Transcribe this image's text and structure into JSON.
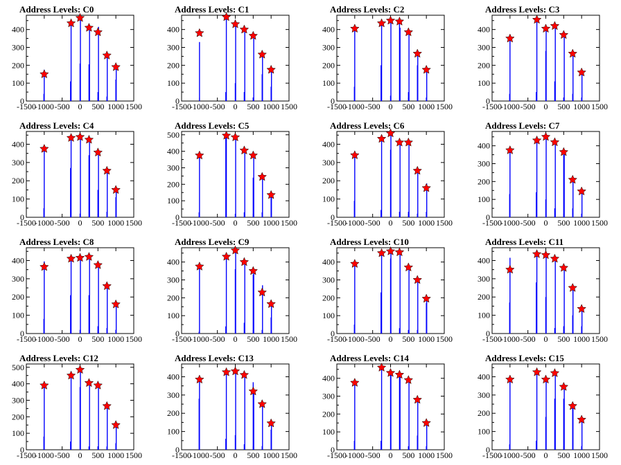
{
  "figure": {
    "x_ticks": [
      -1500,
      -1000,
      -500,
      0,
      500,
      1000,
      1500
    ],
    "x_tick_labels": [
      "-1500",
      "-1000",
      "-500",
      "0",
      "500",
      "1000",
      "1500"
    ],
    "colors": {
      "histogram": "#0000ff",
      "marker": "#ff0000",
      "marker_edge": "#000000",
      "frame": "#000000"
    }
  },
  "chart_data": [
    {
      "type": "bar",
      "title": "Address Levels: C0",
      "xlim": [
        -1500,
        1500
      ],
      "ylim": [
        0,
        480
      ],
      "yticks": [
        0,
        100,
        200,
        300,
        400
      ],
      "ytick_labels": [
        "0",
        "100",
        "200",
        "300",
        "400"
      ],
      "markers": {
        "x": [
          -1000,
          -250,
          0,
          250,
          500,
          750,
          1000
        ],
        "y": [
          150,
          435,
          465,
          410,
          385,
          255,
          190
        ]
      },
      "bars": {
        "x": [
          -1010,
          -1000,
          -265,
          -250,
          0,
          10,
          250,
          265,
          500,
          515,
          750,
          760,
          1000,
          1010
        ],
        "y": [
          40,
          175,
          110,
          440,
          210,
          470,
          205,
          420,
          50,
          415,
          25,
          260,
          120,
          195
        ]
      }
    },
    {
      "type": "bar",
      "title": "Address Levels: C1",
      "xlim": [
        -1500,
        1500
      ],
      "ylim": [
        0,
        480
      ],
      "yticks": [
        0,
        100,
        200,
        300,
        400
      ],
      "ytick_labels": [
        "0",
        "100",
        "200",
        "300",
        "400"
      ],
      "markers": {
        "x": [
          -1000,
          -250,
          0,
          250,
          500,
          750,
          1000
        ],
        "y": [
          380,
          470,
          430,
          400,
          365,
          260,
          175
        ]
      },
      "bars": {
        "x": [
          -1000,
          -265,
          -250,
          0,
          10,
          250,
          265,
          500,
          515,
          750,
          760,
          1000,
          1010
        ],
        "y": [
          330,
          50,
          475,
          100,
          440,
          50,
          410,
          20,
          370,
          150,
          265,
          80,
          180
        ]
      }
    },
    {
      "type": "bar",
      "title": "Address Levels: C2",
      "xlim": [
        -1500,
        1500
      ],
      "ylim": [
        0,
        480
      ],
      "yticks": [
        0,
        100,
        200,
        300,
        400
      ],
      "ytick_labels": [
        "0",
        "100",
        "200",
        "300",
        "400"
      ],
      "markers": {
        "x": [
          -1000,
          -250,
          0,
          250,
          500,
          750,
          1000
        ],
        "y": [
          405,
          435,
          450,
          445,
          385,
          265,
          175
        ]
      },
      "bars": {
        "x": [
          -1010,
          -1000,
          -265,
          -250,
          0,
          10,
          250,
          265,
          500,
          515,
          750,
          760,
          1000,
          1010
        ],
        "y": [
          80,
          410,
          200,
          440,
          30,
          460,
          440,
          410,
          50,
          390,
          200,
          270,
          20,
          180
        ]
      }
    },
    {
      "type": "bar",
      "title": "Address Levels: C3",
      "xlim": [
        -1500,
        1500
      ],
      "ylim": [
        0,
        480
      ],
      "yticks": [
        0,
        100,
        200,
        300,
        400
      ],
      "ytick_labels": [
        "0",
        "100",
        "200",
        "300",
        "400"
      ],
      "markers": {
        "x": [
          -1000,
          -250,
          0,
          250,
          500,
          750,
          1000
        ],
        "y": [
          350,
          455,
          405,
          420,
          370,
          265,
          160
        ]
      },
      "bars": {
        "x": [
          -1010,
          -1000,
          -265,
          -250,
          0,
          10,
          250,
          265,
          500,
          515,
          750,
          760,
          1000,
          1010
        ],
        "y": [
          40,
          355,
          50,
          460,
          280,
          410,
          110,
          425,
          20,
          375,
          40,
          270,
          20,
          165
        ]
      }
    },
    {
      "type": "bar",
      "title": "Address Levels: C4",
      "xlim": [
        -1500,
        1500
      ],
      "ylim": [
        0,
        470
      ],
      "yticks": [
        0,
        100,
        200,
        300,
        400
      ],
      "ytick_labels": [
        "0",
        "100",
        "200",
        "300",
        "400"
      ],
      "markers": {
        "x": [
          -1000,
          -250,
          0,
          250,
          500,
          750,
          1000
        ],
        "y": [
          375,
          435,
          440,
          425,
          355,
          255,
          150
        ]
      },
      "bars": {
        "x": [
          -1010,
          -1000,
          -265,
          -250,
          0,
          10,
          250,
          265,
          500,
          515,
          750,
          760,
          1000,
          1010
        ],
        "y": [
          50,
          380,
          270,
          440,
          20,
          445,
          340,
          430,
          150,
          360,
          30,
          260,
          110,
          155
        ]
      }
    },
    {
      "type": "bar",
      "title": "Address Levels: C5",
      "xlim": [
        -1500,
        1500
      ],
      "ylim": [
        0,
        520
      ],
      "yticks": [
        0,
        100,
        200,
        300,
        400,
        500
      ],
      "ytick_labels": [
        "0",
        "100",
        "200",
        "300",
        "400",
        "500"
      ],
      "markers": {
        "x": [
          -1000,
          -250,
          0,
          250,
          500,
          750,
          1000
        ],
        "y": [
          375,
          495,
          485,
          405,
          375,
          245,
          135
        ]
      },
      "bars": {
        "x": [
          -1010,
          -1000,
          -265,
          -250,
          0,
          10,
          250,
          265,
          500,
          515,
          750,
          760,
          1000,
          1010
        ],
        "y": [
          30,
          380,
          480,
          500,
          20,
          490,
          30,
          410,
          240,
          380,
          30,
          250,
          130,
          150
        ]
      }
    },
    {
      "type": "bar",
      "title": "Address Levels: C6",
      "xlim": [
        -1500,
        1500
      ],
      "ylim": [
        0,
        470
      ],
      "yticks": [
        0,
        100,
        200,
        300,
        400
      ],
      "ytick_labels": [
        "0",
        "100",
        "200",
        "300",
        "400"
      ],
      "markers": {
        "x": [
          -1000,
          -250,
          0,
          250,
          500,
          750,
          1000
        ],
        "y": [
          340,
          430,
          460,
          410,
          410,
          255,
          160
        ]
      },
      "bars": {
        "x": [
          -1010,
          -1000,
          -265,
          -250,
          0,
          10,
          250,
          265,
          500,
          515,
          750,
          760,
          1000,
          1010
        ],
        "y": [
          90,
          340,
          40,
          430,
          370,
          465,
          30,
          415,
          30,
          415,
          20,
          260,
          30,
          185
        ]
      }
    },
    {
      "type": "bar",
      "title": "Address Levels: C7",
      "xlim": [
        -1500,
        1500
      ],
      "ylim": [
        0,
        480
      ],
      "yticks": [
        0,
        100,
        200,
        300,
        400
      ],
      "ytick_labels": [
        "0",
        "100",
        "200",
        "300",
        "400"
      ],
      "markers": {
        "x": [
          -1000,
          -250,
          0,
          250,
          500,
          750,
          1000
        ],
        "y": [
          375,
          430,
          450,
          420,
          365,
          210,
          145
        ]
      },
      "bars": {
        "x": [
          -1010,
          -1000,
          -265,
          -250,
          0,
          10,
          250,
          265,
          500,
          515,
          750,
          760,
          1000,
          1010
        ],
        "y": [
          130,
          380,
          140,
          435,
          100,
          455,
          50,
          425,
          350,
          370,
          50,
          215,
          20,
          150
        ]
      }
    },
    {
      "type": "bar",
      "title": "Address Levels: C8",
      "xlim": [
        -1500,
        1500
      ],
      "ylim": [
        0,
        470
      ],
      "yticks": [
        0,
        100,
        200,
        300,
        400
      ],
      "ytick_labels": [
        "0",
        "100",
        "200",
        "300",
        "400"
      ],
      "markers": {
        "x": [
          -1000,
          -250,
          0,
          250,
          500,
          750,
          1000
        ],
        "y": [
          365,
          410,
          415,
          420,
          375,
          260,
          160
        ]
      },
      "bars": {
        "x": [
          -1010,
          -1000,
          -265,
          -250,
          0,
          10,
          250,
          265,
          500,
          515,
          750,
          760,
          1000,
          1010
        ],
        "y": [
          80,
          395,
          210,
          410,
          20,
          420,
          210,
          425,
          40,
          380,
          30,
          270,
          20,
          165
        ]
      }
    },
    {
      "type": "bar",
      "title": "Address Levels: C9",
      "xlim": [
        -1500,
        1500
      ],
      "ylim": [
        0,
        480
      ],
      "yticks": [
        0,
        100,
        200,
        300,
        400
      ],
      "ytick_labels": [
        "0",
        "100",
        "200",
        "300",
        "400"
      ],
      "markers": {
        "x": [
          -1000,
          -250,
          0,
          250,
          500,
          750,
          1000
        ],
        "y": [
          375,
          430,
          465,
          400,
          350,
          230,
          165
        ]
      },
      "bars": {
        "x": [
          -1010,
          -1000,
          -265,
          -250,
          0,
          10,
          250,
          265,
          500,
          515,
          750,
          760,
          1000,
          1010
        ],
        "y": [
          10,
          380,
          40,
          435,
          360,
          470,
          60,
          405,
          330,
          355,
          20,
          270,
          90,
          170
        ]
      }
    },
    {
      "type": "bar",
      "title": "Address Levels: C10",
      "xlim": [
        -1500,
        1500
      ],
      "ylim": [
        0,
        480
      ],
      "yticks": [
        0,
        100,
        200,
        300,
        400
      ],
      "ytick_labels": [
        "0",
        "100",
        "200",
        "300",
        "400"
      ],
      "markers": {
        "x": [
          -1000,
          -250,
          0,
          250,
          500,
          750,
          1000
        ],
        "y": [
          390,
          450,
          460,
          455,
          370,
          300,
          195
        ]
      },
      "bars": {
        "x": [
          -1010,
          -1000,
          -265,
          -250,
          0,
          10,
          250,
          265,
          500,
          515,
          750,
          760,
          1000,
          1010
        ],
        "y": [
          50,
          395,
          230,
          455,
          420,
          465,
          30,
          460,
          20,
          375,
          20,
          300,
          170,
          200
        ]
      }
    },
    {
      "type": "bar",
      "title": "Address Levels: C11",
      "xlim": [
        -1500,
        1500
      ],
      "ylim": [
        0,
        470
      ],
      "yticks": [
        0,
        100,
        200,
        300,
        400
      ],
      "ytick_labels": [
        "0",
        "100",
        "200",
        "300",
        "400"
      ],
      "markers": {
        "x": [
          -1000,
          -250,
          0,
          250,
          500,
          750,
          1000
        ],
        "y": [
          350,
          435,
          430,
          410,
          360,
          250,
          135
        ]
      },
      "bars": {
        "x": [
          -1010,
          -1000,
          -265,
          -250,
          0,
          10,
          250,
          265,
          500,
          515,
          750,
          760,
          1000,
          1010
        ],
        "y": [
          170,
          415,
          280,
          440,
          200,
          435,
          30,
          415,
          40,
          365,
          100,
          255,
          40,
          140
        ]
      }
    },
    {
      "type": "bar",
      "title": "Address Levels: C12",
      "xlim": [
        -1500,
        1500
      ],
      "ylim": [
        0,
        520
      ],
      "yticks": [
        0,
        100,
        200,
        300,
        400,
        500
      ],
      "ytick_labels": [
        "0",
        "100",
        "200",
        "300",
        "400",
        "500"
      ],
      "markers": {
        "x": [
          -1000,
          -250,
          0,
          250,
          500,
          750,
          1000
        ],
        "y": [
          390,
          450,
          485,
          405,
          390,
          265,
          150
        ]
      },
      "bars": {
        "x": [
          -1010,
          -1000,
          -265,
          -250,
          0,
          10,
          250,
          265,
          500,
          515,
          750,
          760,
          1000,
          1010
        ],
        "y": [
          80,
          395,
          50,
          455,
          380,
          490,
          20,
          410,
          20,
          395,
          20,
          270,
          40,
          155
        ]
      }
    },
    {
      "type": "bar",
      "title": "Address Levels: C13",
      "xlim": [
        -1500,
        1500
      ],
      "ylim": [
        0,
        470
      ],
      "yticks": [
        0,
        100,
        200,
        300,
        400
      ],
      "ytick_labels": [
        "0",
        "100",
        "200",
        "300",
        "400"
      ],
      "markers": {
        "x": [
          -1000,
          -250,
          0,
          250,
          500,
          750,
          1000
        ],
        "y": [
          385,
          425,
          430,
          410,
          320,
          250,
          145
        ]
      },
      "bars": {
        "x": [
          -1010,
          -1000,
          -265,
          -250,
          0,
          10,
          250,
          265,
          500,
          515,
          750,
          760,
          1000,
          1010
        ],
        "y": [
          280,
          390,
          60,
          430,
          80,
          435,
          30,
          415,
          370,
          325,
          20,
          255,
          110,
          150
        ]
      }
    },
    {
      "type": "bar",
      "title": "Address Levels: C14",
      "xlim": [
        -1500,
        1500
      ],
      "ylim": [
        0,
        480
      ],
      "yticks": [
        0,
        100,
        200,
        300,
        400
      ],
      "ytick_labels": [
        "0",
        "100",
        "200",
        "300",
        "400"
      ],
      "markers": {
        "x": [
          -1000,
          -250,
          0,
          250,
          500,
          750,
          1000
        ],
        "y": [
          375,
          460,
          430,
          420,
          390,
          280,
          150
        ]
      },
      "bars": {
        "x": [
          -1010,
          -1000,
          -265,
          -250,
          0,
          10,
          250,
          265,
          500,
          515,
          750,
          760,
          1000,
          1010
        ],
        "y": [
          50,
          380,
          50,
          465,
          420,
          435,
          410,
          425,
          20,
          395,
          80,
          285,
          20,
          155
        ]
      }
    },
    {
      "type": "bar",
      "title": "Address Levels: C15",
      "xlim": [
        -1500,
        1500
      ],
      "ylim": [
        0,
        470
      ],
      "yticks": [
        0,
        100,
        200,
        300,
        400
      ],
      "ytick_labels": [
        "0",
        "100",
        "200",
        "300",
        "400"
      ],
      "markers": {
        "x": [
          -1000,
          -250,
          0,
          250,
          500,
          750,
          1000
        ],
        "y": [
          385,
          425,
          385,
          420,
          345,
          240,
          165
        ]
      },
      "bars": {
        "x": [
          -1010,
          -1000,
          -265,
          -250,
          0,
          10,
          250,
          265,
          500,
          515,
          750,
          760,
          1000,
          1010
        ],
        "y": [
          30,
          390,
          50,
          430,
          180,
          390,
          280,
          425,
          280,
          350,
          250,
          245,
          20,
          170
        ]
      }
    }
  ]
}
